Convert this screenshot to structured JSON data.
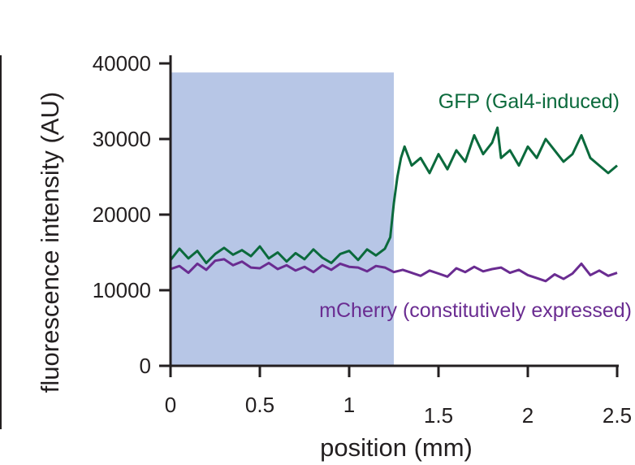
{
  "chart_data": {
    "type": "line",
    "xlabel": "position (mm)",
    "ylabel": "fluorescence intensity (AU)",
    "xlim": [
      0,
      2.5
    ],
    "ylim": [
      0,
      40000
    ],
    "x_ticks": [
      {
        "value": 0,
        "label": "0"
      },
      {
        "value": 0.5,
        "label": "0.5"
      },
      {
        "value": 1,
        "label": "1"
      },
      {
        "value": 1.5,
        "label": "1.5"
      },
      {
        "value": 2,
        "label": "2"
      },
      {
        "value": 2.5,
        "label": "2.5"
      }
    ],
    "y_ticks": [
      {
        "value": 0,
        "label": "0"
      },
      {
        "value": 10000,
        "label": "10000"
      },
      {
        "value": 20000,
        "label": "20000"
      },
      {
        "value": 30000,
        "label": "30000"
      },
      {
        "value": 40000,
        "label": "40000"
      }
    ],
    "shaded_region": {
      "x": [
        0,
        1.25
      ],
      "y": [
        0,
        38800
      ],
      "color": "#b7c6e6"
    },
    "grid": false,
    "series": [
      {
        "name": "GFP (Gal4-induced)",
        "color": "#0b6a3c",
        "x": [
          0,
          0.05,
          0.1,
          0.15,
          0.2,
          0.25,
          0.3,
          0.35,
          0.4,
          0.45,
          0.5,
          0.55,
          0.6,
          0.65,
          0.7,
          0.75,
          0.8,
          0.85,
          0.9,
          0.95,
          1.0,
          1.05,
          1.1,
          1.15,
          1.2,
          1.23,
          1.25,
          1.27,
          1.29,
          1.31,
          1.35,
          1.4,
          1.45,
          1.5,
          1.55,
          1.6,
          1.65,
          1.7,
          1.75,
          1.8,
          1.83,
          1.85,
          1.9,
          1.95,
          2.0,
          2.05,
          2.1,
          2.15,
          2.2,
          2.25,
          2.3,
          2.35,
          2.4,
          2.45,
          2.5
        ],
        "values": [
          14000,
          15500,
          14200,
          15200,
          13600,
          14800,
          15600,
          14700,
          15300,
          14500,
          15800,
          14200,
          15000,
          13800,
          14900,
          14100,
          15400,
          14300,
          13600,
          14800,
          15200,
          14000,
          15400,
          14600,
          15500,
          17000,
          21500,
          25000,
          27500,
          29000,
          26500,
          27500,
          25500,
          28000,
          26000,
          28500,
          27000,
          30500,
          28000,
          29500,
          31500,
          27500,
          28500,
          26500,
          29000,
          27500,
          30000,
          28500,
          27000,
          28000,
          30500,
          27500,
          26500,
          25500,
          26500
        ]
      },
      {
        "name": "mCherry (constitutively expressed)",
        "color": "#6a2c91",
        "x": [
          0,
          0.05,
          0.1,
          0.15,
          0.2,
          0.25,
          0.3,
          0.35,
          0.4,
          0.45,
          0.5,
          0.55,
          0.6,
          0.65,
          0.7,
          0.75,
          0.8,
          0.85,
          0.9,
          0.95,
          1.0,
          1.05,
          1.1,
          1.15,
          1.2,
          1.25,
          1.3,
          1.35,
          1.4,
          1.45,
          1.5,
          1.55,
          1.6,
          1.65,
          1.7,
          1.75,
          1.8,
          1.85,
          1.9,
          1.95,
          2.0,
          2.05,
          2.1,
          2.15,
          2.2,
          2.25,
          2.3,
          2.35,
          2.4,
          2.45,
          2.5
        ],
        "values": [
          12800,
          13200,
          12300,
          13500,
          12700,
          13900,
          14100,
          13300,
          13800,
          13000,
          12900,
          13600,
          12800,
          13300,
          12600,
          13100,
          12400,
          13300,
          12700,
          13500,
          13100,
          13000,
          12500,
          13200,
          13000,
          12400,
          12700,
          12300,
          11900,
          12600,
          12200,
          11800,
          12900,
          12400,
          13100,
          12500,
          12800,
          13000,
          12300,
          12700,
          12000,
          11600,
          11200,
          12100,
          11500,
          12200,
          13500,
          12000,
          12600,
          11900,
          12300
        ]
      }
    ]
  }
}
